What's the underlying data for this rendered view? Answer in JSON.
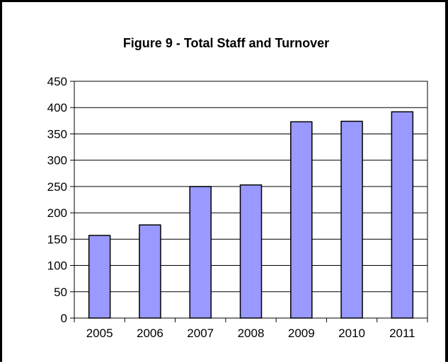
{
  "chart_data": {
    "type": "bar",
    "title": "Figure 9 - Total Staff and Turnover",
    "xlabel": "",
    "ylabel": "",
    "categories": [
      "2005",
      "2006",
      "2007",
      "2008",
      "2009",
      "2010",
      "2011"
    ],
    "values": [
      157,
      177,
      250,
      253,
      373,
      374,
      392
    ],
    "ylim": [
      0,
      450
    ],
    "yticks": [
      "0",
      "50",
      "100",
      "150",
      "200",
      "250",
      "300",
      "350",
      "400",
      "450"
    ],
    "grid": true,
    "legend": "none",
    "colors": {
      "bar_fill": "#9999ff",
      "bar_stroke": "#000000",
      "grid": "#000000"
    }
  }
}
